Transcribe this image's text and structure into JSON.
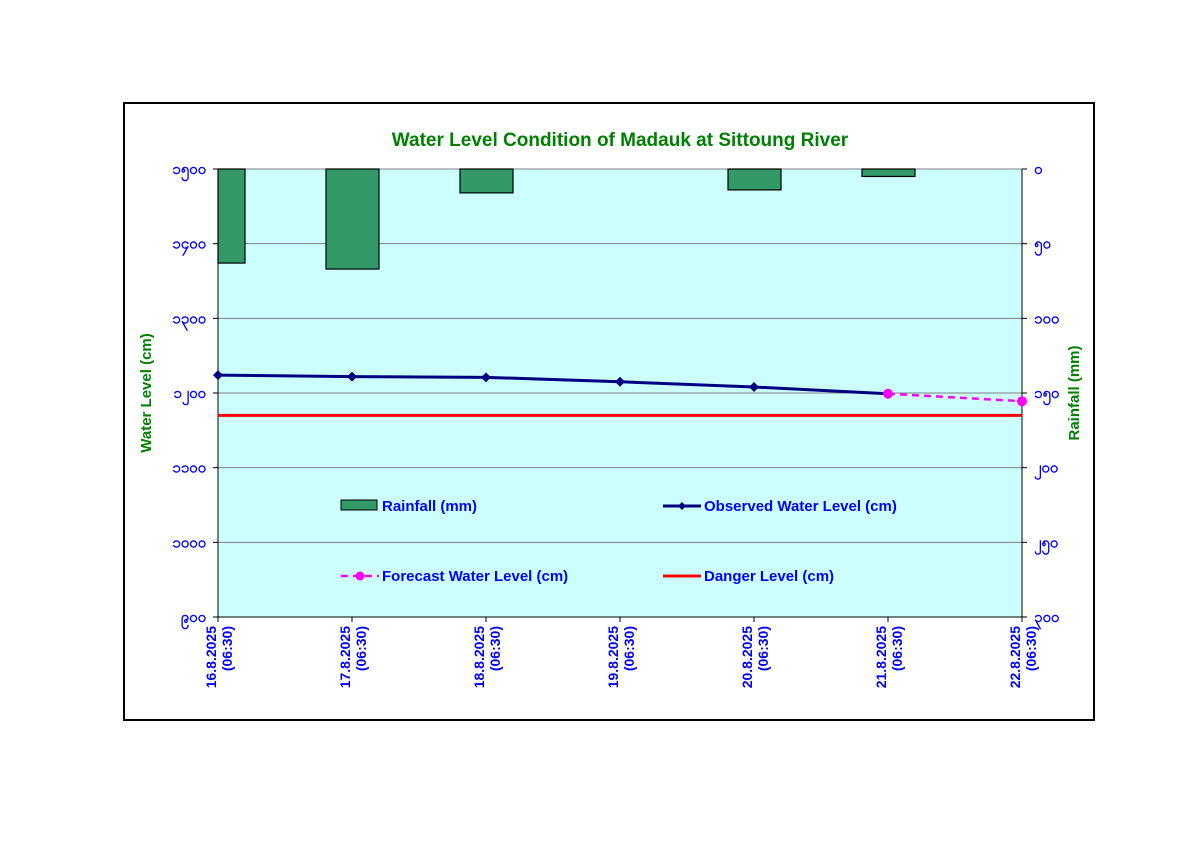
{
  "chart_data": {
    "type": "bar+line",
    "title": "Water Level Condition of Madauk at Sittoung River",
    "x_categories": [
      "16.8.2025",
      "17.8.2025",
      "18.8.2025",
      "19.8.2025",
      "20.8.2025",
      "21.8.2025",
      "22.8.2025"
    ],
    "x_time_label": "(06:30)",
    "left_axis": {
      "label": "Water Level (cm)",
      "range": [
        900,
        1500
      ],
      "tick_values": [
        900,
        1000,
        1100,
        1200,
        1300,
        1400,
        1500
      ],
      "tick_labels": [
        "၉၀၀",
        "၁၀၀၀",
        "၁၁၀၀",
        "၁၂၀၀",
        "၁၃၀၀",
        "၁၄၀၀",
        "၁၅၀၀"
      ]
    },
    "right_axis": {
      "label": "Rainfall (mm)",
      "range": [
        0,
        300
      ],
      "inverted": true,
      "tick_values": [
        0,
        50,
        100,
        150,
        200,
        250,
        300
      ],
      "tick_labels": [
        "၀",
        "၅၀",
        "၁၀၀",
        "၁၅၀",
        "၂၀၀",
        "၂၅၀",
        "၃၀၀"
      ]
    },
    "series": [
      {
        "name": "Rainfall (mm)",
        "kind": "bar",
        "axis": "right",
        "color": "#339966",
        "values": [
          63,
          67,
          16,
          0,
          14,
          5
        ]
      },
      {
        "name": "Observed Water Level (cm)",
        "kind": "line",
        "axis": "left",
        "color": "#000080",
        "x_index": [
          0,
          1,
          2,
          3,
          4,
          5
        ],
        "values": [
          1224,
          1222,
          1221,
          1215,
          1208,
          1199
        ]
      },
      {
        "name": "Forecast Water Level (cm)",
        "kind": "line-dashed",
        "axis": "left",
        "color": "#ff00ff",
        "x_index": [
          5,
          6
        ],
        "values": [
          1199,
          1189
        ]
      },
      {
        "name": "Danger Level (cm)",
        "kind": "hline",
        "axis": "left",
        "color": "#ff0000",
        "value": 1170
      }
    ],
    "legend_placement": "inside-bottom",
    "grid": true,
    "plot_background": "#ccffff"
  }
}
